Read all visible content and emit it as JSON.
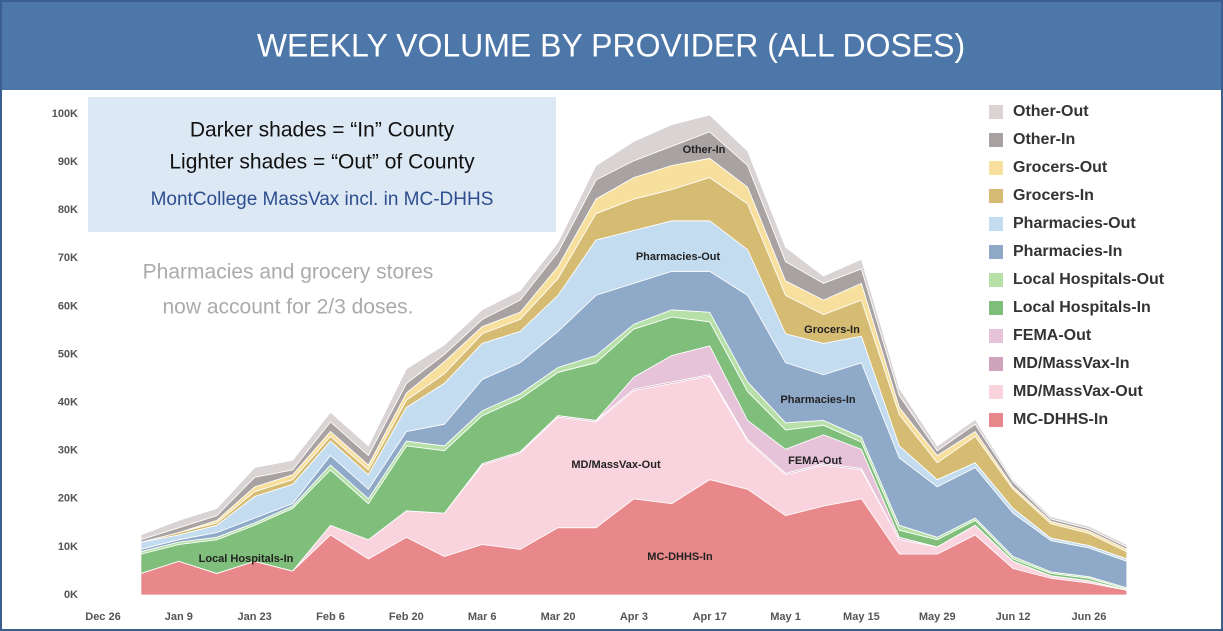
{
  "chart_data": {
    "type": "stacked_area",
    "title": "WEEKLY VOLUME BY PROVIDER (ALL DOSES)",
    "annotations": [
      "Darker shades = “In” County",
      "Lighter shades = “Out” of County",
      "MontCollege MassVax incl. in MC-DHHS",
      "Pharmacies and grocery stores",
      "now account for 2/3 doses."
    ],
    "area_labels": [
      "Other-In",
      "Pharmacies-Out",
      "Grocers-In",
      "Pharmacies-In",
      "FEMA-Out",
      "MD/MassVax-Out",
      "MC-DHHS-In",
      "Local Hospitals-In"
    ],
    "categories": [
      "Dec 26",
      null,
      "Jan 9",
      null,
      "Jan 23",
      null,
      "Feb 6",
      null,
      "Feb 20",
      null,
      "Mar 6",
      null,
      "Mar 20",
      null,
      "Apr 3",
      null,
      "Apr 17",
      null,
      "May 1",
      null,
      "May 15",
      null,
      "May 29",
      null,
      "Jun 12",
      null,
      "Jun 26",
      null
    ],
    "ylim": [
      0,
      100000
    ],
    "yticks": [
      {
        "value": 0,
        "label": "0K"
      },
      {
        "value": 10000,
        "label": "10K"
      },
      {
        "value": 20000,
        "label": "20K"
      },
      {
        "value": 30000,
        "label": "30K"
      },
      {
        "value": 40000,
        "label": "40K"
      },
      {
        "value": 50000,
        "label": "50K"
      },
      {
        "value": 60000,
        "label": "60K"
      },
      {
        "value": 70000,
        "label": "70K"
      },
      {
        "value": 80000,
        "label": "80K"
      },
      {
        "value": 90000,
        "label": "90K"
      },
      {
        "value": 100000,
        "label": "100K"
      }
    ],
    "legend": "right",
    "series": [
      {
        "name": "MC-DHHS-In",
        "color": "#e8888a",
        "values": [
          null,
          4500,
          7000,
          4500,
          7000,
          5000,
          12500,
          7500,
          12000,
          8000,
          10500,
          9500,
          14000,
          14000,
          20000,
          19000,
          24000,
          22000,
          16500,
          18500,
          20000,
          8500,
          8500,
          12500,
          5500,
          3500,
          2500,
          1000
        ]
      },
      {
        "name": "MD/MassVax-Out",
        "color": "#f9d3dd",
        "values": [
          null,
          0,
          0,
          0,
          0,
          0,
          2000,
          4000,
          5500,
          9000,
          16500,
          20000,
          23000,
          22000,
          22500,
          25000,
          21500,
          10000,
          8500,
          8500,
          6000,
          3000,
          1500,
          2000,
          1500,
          500,
          500,
          0
        ]
      },
      {
        "name": "MD/MassVax-In",
        "color": "#cfa3be",
        "values": [
          null,
          0,
          0,
          0,
          0,
          0,
          0,
          0,
          0,
          0,
          300,
          300,
          300,
          300,
          300,
          300,
          300,
          300,
          300,
          300,
          300,
          0,
          0,
          0,
          0,
          0,
          0,
          0
        ]
      },
      {
        "name": "FEMA-Out",
        "color": "#e6c3d8",
        "values": [
          null,
          0,
          0,
          0,
          0,
          0,
          0,
          0,
          0,
          0,
          0,
          0,
          0,
          0,
          2500,
          5500,
          6000,
          4000,
          5000,
          6000,
          4000,
          500,
          0,
          0,
          0,
          0,
          0,
          0
        ]
      },
      {
        "name": "Local Hospitals-In",
        "color": "#7fbf7b",
        "values": [
          null,
          4000,
          3500,
          7000,
          7500,
          13000,
          11500,
          7500,
          13500,
          13000,
          10000,
          11000,
          9000,
          12000,
          10000,
          8000,
          5000,
          6000,
          4000,
          2000,
          1500,
          1500,
          1500,
          1000,
          500,
          500,
          500,
          200
        ]
      },
      {
        "name": "Local Hospitals-Out",
        "color": "#b7e0a8",
        "values": [
          null,
          500,
          500,
          500,
          500,
          500,
          1000,
          1000,
          1000,
          1000,
          1000,
          1000,
          1000,
          1500,
          1000,
          1500,
          2000,
          2000,
          1500,
          1000,
          1000,
          1000,
          500,
          500,
          500,
          300,
          300,
          300
        ]
      },
      {
        "name": "Pharmacies-In",
        "color": "#8fa9c9",
        "values": [
          null,
          500,
          500,
          1000,
          1000,
          500,
          2000,
          2000,
          2000,
          4500,
          6500,
          6500,
          7500,
          12500,
          8500,
          8000,
          8500,
          18000,
          12500,
          9500,
          15500,
          14000,
          10500,
          10500,
          9000,
          6500,
          6000,
          5500
        ]
      },
      {
        "name": "Pharmacies-Out",
        "color": "#c4dcef",
        "values": [
          null,
          1500,
          1000,
          1500,
          4500,
          4000,
          3000,
          3000,
          5000,
          8500,
          7500,
          6500,
          7500,
          11500,
          11000,
          10500,
          10500,
          9500,
          6000,
          6500,
          5500,
          2500,
          1500,
          1000,
          1000,
          500,
          500,
          500
        ]
      },
      {
        "name": "Grocers-In",
        "color": "#d6bb72",
        "values": [
          null,
          0,
          500,
          500,
          1000,
          1000,
          1000,
          1000,
          1500,
          2000,
          2000,
          2500,
          3500,
          5500,
          6500,
          6500,
          9000,
          9500,
          8000,
          6000,
          7500,
          6500,
          3500,
          5500,
          4000,
          3000,
          2500,
          1500
        ]
      },
      {
        "name": "Grocers-Out",
        "color": "#f7df9e",
        "values": [
          null,
          0,
          0,
          500,
          1000,
          1000,
          1000,
          1000,
          1500,
          2500,
          1500,
          1500,
          2500,
          3000,
          4500,
          5000,
          4000,
          3500,
          3000,
          3000,
          3500,
          1500,
          1500,
          1000,
          500,
          500,
          500,
          500
        ]
      },
      {
        "name": "Other-In",
        "color": "#a9a2a2",
        "values": [
          null,
          500,
          1000,
          1000,
          2000,
          1000,
          2000,
          2000,
          2000,
          1500,
          1500,
          2500,
          3000,
          4000,
          3500,
          4000,
          5500,
          4500,
          4000,
          3500,
          3000,
          2500,
          1000,
          1500,
          1000,
          500,
          500,
          500
        ]
      },
      {
        "name": "Other-Out",
        "color": "#d9d3d3",
        "values": [
          null,
          1000,
          1500,
          1500,
          2000,
          2000,
          2000,
          2000,
          3000,
          2000,
          2000,
          2000,
          2000,
          3000,
          4000,
          4500,
          3500,
          3000,
          3000,
          1500,
          2000,
          1500,
          1000,
          1000,
          500,
          500,
          500,
          500
        ]
      }
    ]
  }
}
